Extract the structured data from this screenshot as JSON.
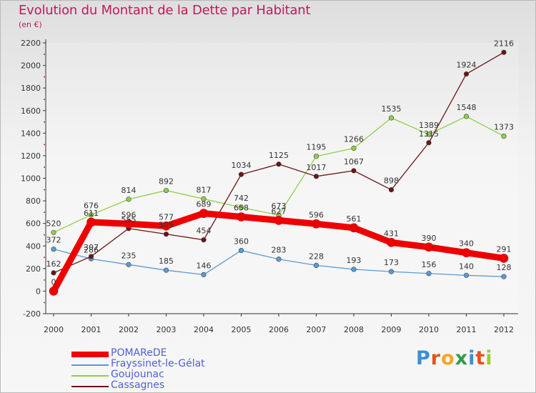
{
  "title": "Evolution du Montant de la Dette par Habitant",
  "subtitle": "(en €)",
  "logo": {
    "letters": [
      "P",
      "r",
      "o",
      "x",
      "i",
      "t",
      "i"
    ],
    "colors": [
      "#3a8fd6",
      "#e8501e",
      "#f5a623",
      "#2e9c4a",
      "#3a8fd6",
      "#e8501e",
      "#9bcf2e"
    ]
  },
  "chart_data": {
    "type": "line",
    "x": [
      2000,
      2001,
      2002,
      2003,
      2004,
      2005,
      2006,
      2007,
      2008,
      2009,
      2010,
      2011,
      2012
    ],
    "ylim": [
      -200,
      2200
    ],
    "yticks": [
      -200,
      0,
      200,
      400,
      600,
      800,
      1000,
      1200,
      1400,
      1600,
      1800,
      2000,
      2200
    ],
    "grid": false,
    "legend_position": "bottom-left",
    "series": [
      {
        "name": "POMAReDE",
        "color": "#ee0000",
        "values": [
          0,
          611,
          596,
          577,
          689,
          658,
          627,
          596,
          561,
          431,
          390,
          340,
          291
        ]
      },
      {
        "name": "Frayssinet-le-Gélat",
        "color": "#5b9bd5",
        "values": [
          372,
          286,
          235,
          185,
          146,
          360,
          283,
          228,
          193,
          173,
          156,
          140,
          128
        ]
      },
      {
        "name": "Goujounac",
        "color": "#8ed045",
        "values": [
          520,
          676,
          814,
          892,
          817,
          742,
          673,
          1195,
          1266,
          1535,
          1389,
          1548,
          1373
        ]
      },
      {
        "name": "Cassagnes",
        "color": "#6b1414",
        "values": [
          162,
          307,
          555,
          505,
          454,
          1034,
          1125,
          1017,
          1067,
          898,
          1315,
          1924,
          2116
        ]
      }
    ]
  }
}
